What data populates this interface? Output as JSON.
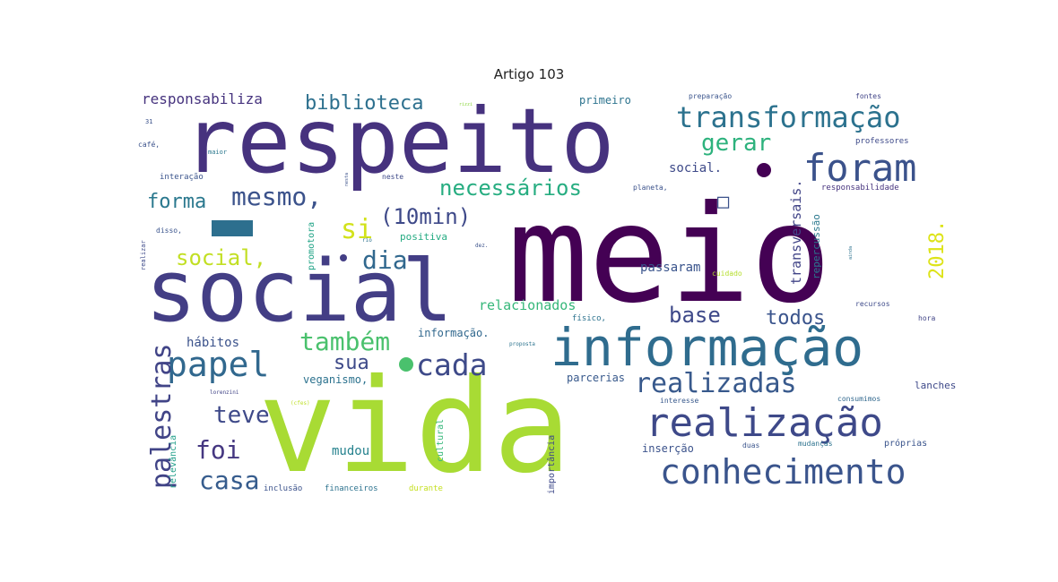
{
  "chart_data": {
    "type": "wordcloud",
    "title": "Artigo 103",
    "words": [
      {
        "text": "meio",
        "weight": 150,
        "color": "#440154"
      },
      {
        "text": "vida",
        "weight": 135,
        "color": "#a8db34"
      },
      {
        "text": "respeito",
        "weight": 100,
        "color": "#46327e"
      },
      {
        "text": "social",
        "weight": 95,
        "color": "#433e85"
      },
      {
        "text": "informação",
        "weight": 58,
        "color": "#2f6c8e"
      },
      {
        "text": "realização",
        "weight": 44,
        "color": "#3e4989"
      },
      {
        "text": "foram",
        "weight": 40,
        "color": "#3b528b"
      },
      {
        "text": "conhecimento",
        "weight": 38,
        "color": "#3a548c"
      },
      {
        "text": "papel",
        "weight": 38,
        "color": "#31688e"
      },
      {
        "text": "transformação",
        "weight": 33,
        "color": "#2c728e"
      },
      {
        "text": "cada",
        "weight": 33,
        "color": "#3e4a89"
      },
      {
        "text": "palestras",
        "weight": 30,
        "color": "#414487"
      },
      {
        "text": "realizadas",
        "weight": 30,
        "color": "#38598c"
      },
      {
        "text": "mesmo,",
        "weight": 28,
        "color": "#3b528b"
      },
      {
        "text": "também",
        "weight": 28,
        "color": "#4ac16d"
      },
      {
        "text": "dia",
        "weight": 28,
        "color": "#31688e"
      },
      {
        "text": "si",
        "weight": 30,
        "color": "#d2e21b"
      },
      {
        "text": "casa",
        "weight": 28,
        "color": "#365c8d"
      },
      {
        "text": "teve",
        "weight": 26,
        "color": "#3e4989"
      },
      {
        "text": "foi",
        "weight": 26,
        "color": "#453781"
      },
      {
        "text": "necessários",
        "weight": 24,
        "color": "#27ad81"
      },
      {
        "text": "(10min)",
        "weight": 24,
        "color": "#3e4989"
      },
      {
        "text": "social,",
        "weight": 24,
        "color": "#c2df23"
      },
      {
        "text": "gerar",
        "weight": 24,
        "color": "#2db27d"
      },
      {
        "text": "forma",
        "weight": 22,
        "color": "#2a788e"
      },
      {
        "text": "biblioteca",
        "weight": 22,
        "color": "#2d708e"
      },
      {
        "text": "base",
        "weight": 22,
        "color": "#3e4989"
      },
      {
        "text": "todos",
        "weight": 22,
        "color": "#3a548c"
      },
      {
        "text": "sua",
        "weight": 22,
        "color": "#3e4a89"
      },
      {
        "text": "2018.",
        "weight": 22,
        "color": "#dde318"
      },
      {
        "text": "responsabiliza",
        "weight": 16,
        "color": "#46337e"
      },
      {
        "text": "transversais.",
        "weight": 15,
        "color": "#414487"
      },
      {
        "text": "relacionados",
        "weight": 15,
        "color": "#35b779"
      },
      {
        "text": "passaram",
        "weight": 14,
        "color": "#3a548c"
      },
      {
        "text": "social.",
        "weight": 14,
        "color": "#3e4a89"
      },
      {
        "text": "hábitos",
        "weight": 14,
        "color": "#3b528b"
      },
      {
        "text": "mudou",
        "weight": 14,
        "color": "#26828e"
      },
      {
        "text": "veganismo,",
        "weight": 12,
        "color": "#2c728e"
      },
      {
        "text": "informação.",
        "weight": 12,
        "color": "#31688e"
      },
      {
        "text": "parcerias",
        "weight": 12,
        "color": "#38598c"
      },
      {
        "text": "primeiro",
        "weight": 12,
        "color": "#2c738e"
      },
      {
        "text": "inserção",
        "weight": 12,
        "color": "#3b528b"
      },
      {
        "text": "positiva",
        "weight": 11,
        "color": "#25ab82"
      },
      {
        "text": "lanches",
        "weight": 11,
        "color": "#3e4989"
      },
      {
        "text": "repercussão",
        "weight": 11,
        "color": "#2a788e"
      },
      {
        "text": "promotora",
        "weight": 10,
        "color": "#20a386"
      },
      {
        "text": "cultural",
        "weight": 10,
        "color": "#35b779"
      },
      {
        "text": "importância",
        "weight": 10,
        "color": "#3e4989"
      },
      {
        "text": "relevância",
        "weight": 10,
        "color": "#1f9e89"
      },
      {
        "text": "próprias",
        "weight": 10,
        "color": "#3a548c"
      },
      {
        "text": "inclusão",
        "weight": 9,
        "color": "#3b528b"
      },
      {
        "text": "financeiros",
        "weight": 9,
        "color": "#2c728e"
      },
      {
        "text": "durante",
        "weight": 9,
        "color": "#c5e021"
      },
      {
        "text": "interação",
        "weight": 9,
        "color": "#3a548c"
      },
      {
        "text": "responsabilidade",
        "weight": 9,
        "color": "#46337e"
      },
      {
        "text": "professores",
        "weight": 9,
        "color": "#3e4a89"
      },
      {
        "text": "preparação",
        "weight": 8,
        "color": "#3a548c"
      },
      {
        "text": "fontes",
        "weight": 8,
        "color": "#414487"
      },
      {
        "text": "interesse",
        "weight": 8,
        "color": "#38598c"
      },
      {
        "text": "mudanças",
        "weight": 8,
        "color": "#2c728e"
      },
      {
        "text": "consumimos",
        "weight": 8,
        "color": "#31688e"
      },
      {
        "text": "cuidado",
        "weight": 8,
        "color": "#b5de2b"
      },
      {
        "text": "recursos",
        "weight": 8,
        "color": "#3e4a89"
      },
      {
        "text": "planeta,",
        "weight": 8,
        "color": "#3b528b"
      },
      {
        "text": "físico,",
        "weight": 9,
        "color": "#2c728e"
      },
      {
        "text": "hora",
        "weight": 8,
        "color": "#414487"
      },
      {
        "text": "duas",
        "weight": 8,
        "color": "#3a548c"
      },
      {
        "text": "café,",
        "weight": 8,
        "color": "#3b528b"
      },
      {
        "text": "disso,",
        "weight": 8,
        "color": "#3a548c"
      },
      {
        "text": "neste",
        "weight": 8,
        "color": "#3e4a89"
      },
      {
        "text": "maior",
        "weight": 7,
        "color": "#2a788e"
      },
      {
        "text": "31",
        "weight": 7,
        "color": "#3b528b"
      },
      {
        "text": "realizar",
        "weight": 7,
        "color": "#3e4a89"
      },
      {
        "text": "proposta",
        "weight": 6,
        "color": "#2c738e"
      },
      {
        "text": "dez.",
        "weight": 6,
        "color": "#3b528b"
      },
      {
        "text": "lorenzini",
        "weight": 6,
        "color": "#414487"
      },
      {
        "text": "(cfes)",
        "weight": 6,
        "color": "#bddf26"
      },
      {
        "text": "rio",
        "weight": 6,
        "color": "#2c728e"
      },
      {
        "text": "rizzi",
        "weight": 5,
        "color": "#8fd744"
      },
      {
        "text": "nesta",
        "weight": 5,
        "color": "#3b528b"
      },
      {
        "text": "ainda",
        "weight": 5,
        "color": "#2c728e"
      },
      {
        "text": "□",
        "weight": 22,
        "color": "#3b528b"
      }
    ]
  }
}
